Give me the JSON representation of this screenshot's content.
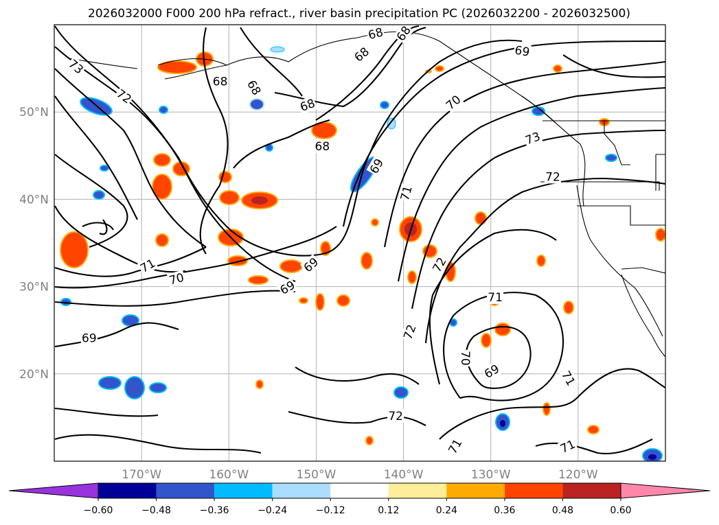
{
  "title": "2026032000 F000 200 hPa refract., river basin precipitation PC (2026032200 - 2026032500)",
  "map": {
    "lon_range": [
      -180,
      -110
    ],
    "lat_range": [
      10,
      60
    ],
    "lat_ticks": [
      {
        "value": 50,
        "label": "50°N"
      },
      {
        "value": 40,
        "label": "40°N"
      },
      {
        "value": 30,
        "label": "30°N"
      },
      {
        "value": 20,
        "label": "20°N"
      }
    ],
    "lon_ticks": [
      {
        "value": -170,
        "label": "170°W"
      },
      {
        "value": -160,
        "label": "160°W"
      },
      {
        "value": -150,
        "label": "150°W"
      },
      {
        "value": -140,
        "label": "140°W"
      },
      {
        "value": -130,
        "label": "130°W"
      },
      {
        "value": -120,
        "label": "120°W"
      }
    ]
  },
  "contour_labels": [
    {
      "text": "73",
      "lon": -177.5,
      "lat": 55.2,
      "rot": 40
    },
    {
      "text": "72",
      "lon": -172.0,
      "lat": 51.8,
      "rot": 35
    },
    {
      "text": "68",
      "lon": -161.0,
      "lat": 53.5,
      "rot": 0
    },
    {
      "text": "68",
      "lon": -157.1,
      "lat": 52.8,
      "rot": 60
    },
    {
      "text": "68",
      "lon": -151.0,
      "lat": 50.8,
      "rot": -20
    },
    {
      "text": "68",
      "lon": -144.8,
      "lat": 56.6,
      "rot": -40
    },
    {
      "text": "68",
      "lon": -143.2,
      "lat": 59.0,
      "rot": -15
    },
    {
      "text": "68",
      "lon": -140.0,
      "lat": 59.0,
      "rot": -55
    },
    {
      "text": "68",
      "lon": -149.3,
      "lat": 46.1,
      "rot": 0
    },
    {
      "text": "69",
      "lon": -126.4,
      "lat": 57.0,
      "rot": 10
    },
    {
      "text": "69",
      "lon": -143.1,
      "lat": 43.8,
      "rot": -60
    },
    {
      "text": "70",
      "lon": -134.3,
      "lat": 51.1,
      "rot": -40
    },
    {
      "text": "73",
      "lon": -125.2,
      "lat": 47.0,
      "rot": -20
    },
    {
      "text": "72",
      "lon": -122.9,
      "lat": 42.6,
      "rot": 0
    },
    {
      "text": "71",
      "lon": -139.7,
      "lat": 40.7,
      "rot": -75
    },
    {
      "text": "71",
      "lon": -169.3,
      "lat": 32.4,
      "rot": -30
    },
    {
      "text": "70",
      "lon": -166.0,
      "lat": 30.9,
      "rot": -15
    },
    {
      "text": "69",
      "lon": -150.6,
      "lat": 32.5,
      "rot": -40
    },
    {
      "text": "69",
      "lon": -153.3,
      "lat": 29.9,
      "rot": -30
    },
    {
      "text": "72",
      "lon": -135.9,
      "lat": 32.5,
      "rot": -60
    },
    {
      "text": "71",
      "lon": -129.5,
      "lat": 28.8,
      "rot": 0
    },
    {
      "text": "72",
      "lon": -139.3,
      "lat": 24.8,
      "rot": -70
    },
    {
      "text": "69",
      "lon": -176.0,
      "lat": 24.1,
      "rot": 0
    },
    {
      "text": "70",
      "lon": -132.9,
      "lat": 21.8,
      "rot": 90
    },
    {
      "text": "69",
      "lon": -129.9,
      "lat": 20.3,
      "rot": -30
    },
    {
      "text": "71",
      "lon": -121.1,
      "lat": 19.5,
      "rot": 60
    },
    {
      "text": "72",
      "lon": -140.9,
      "lat": 15.2,
      "rot": 0
    },
    {
      "text": "71",
      "lon": -134.1,
      "lat": 11.7,
      "rot": -60
    },
    {
      "text": "71",
      "lon": -121.2,
      "lat": 11.7,
      "rot": -25
    }
  ],
  "colorbar": {
    "boundaries": [
      -0.6,
      -0.48,
      -0.36,
      -0.24,
      -0.12,
      0.12,
      0.24,
      0.36,
      0.48,
      0.6
    ],
    "colors": [
      "#9933dd",
      "#000099",
      "#3355cc",
      "#00bbff",
      "#aaddff",
      "#ffffff",
      "#ffee99",
      "#ffaa00",
      "#ff4400",
      "#bb2222",
      "#ff88aa"
    ],
    "tick_labels": [
      "−0.60",
      "−0.48",
      "−0.36",
      "−0.24",
      "−0.12",
      "0.12",
      "0.24",
      "0.36",
      "0.48",
      "0.60"
    ]
  }
}
